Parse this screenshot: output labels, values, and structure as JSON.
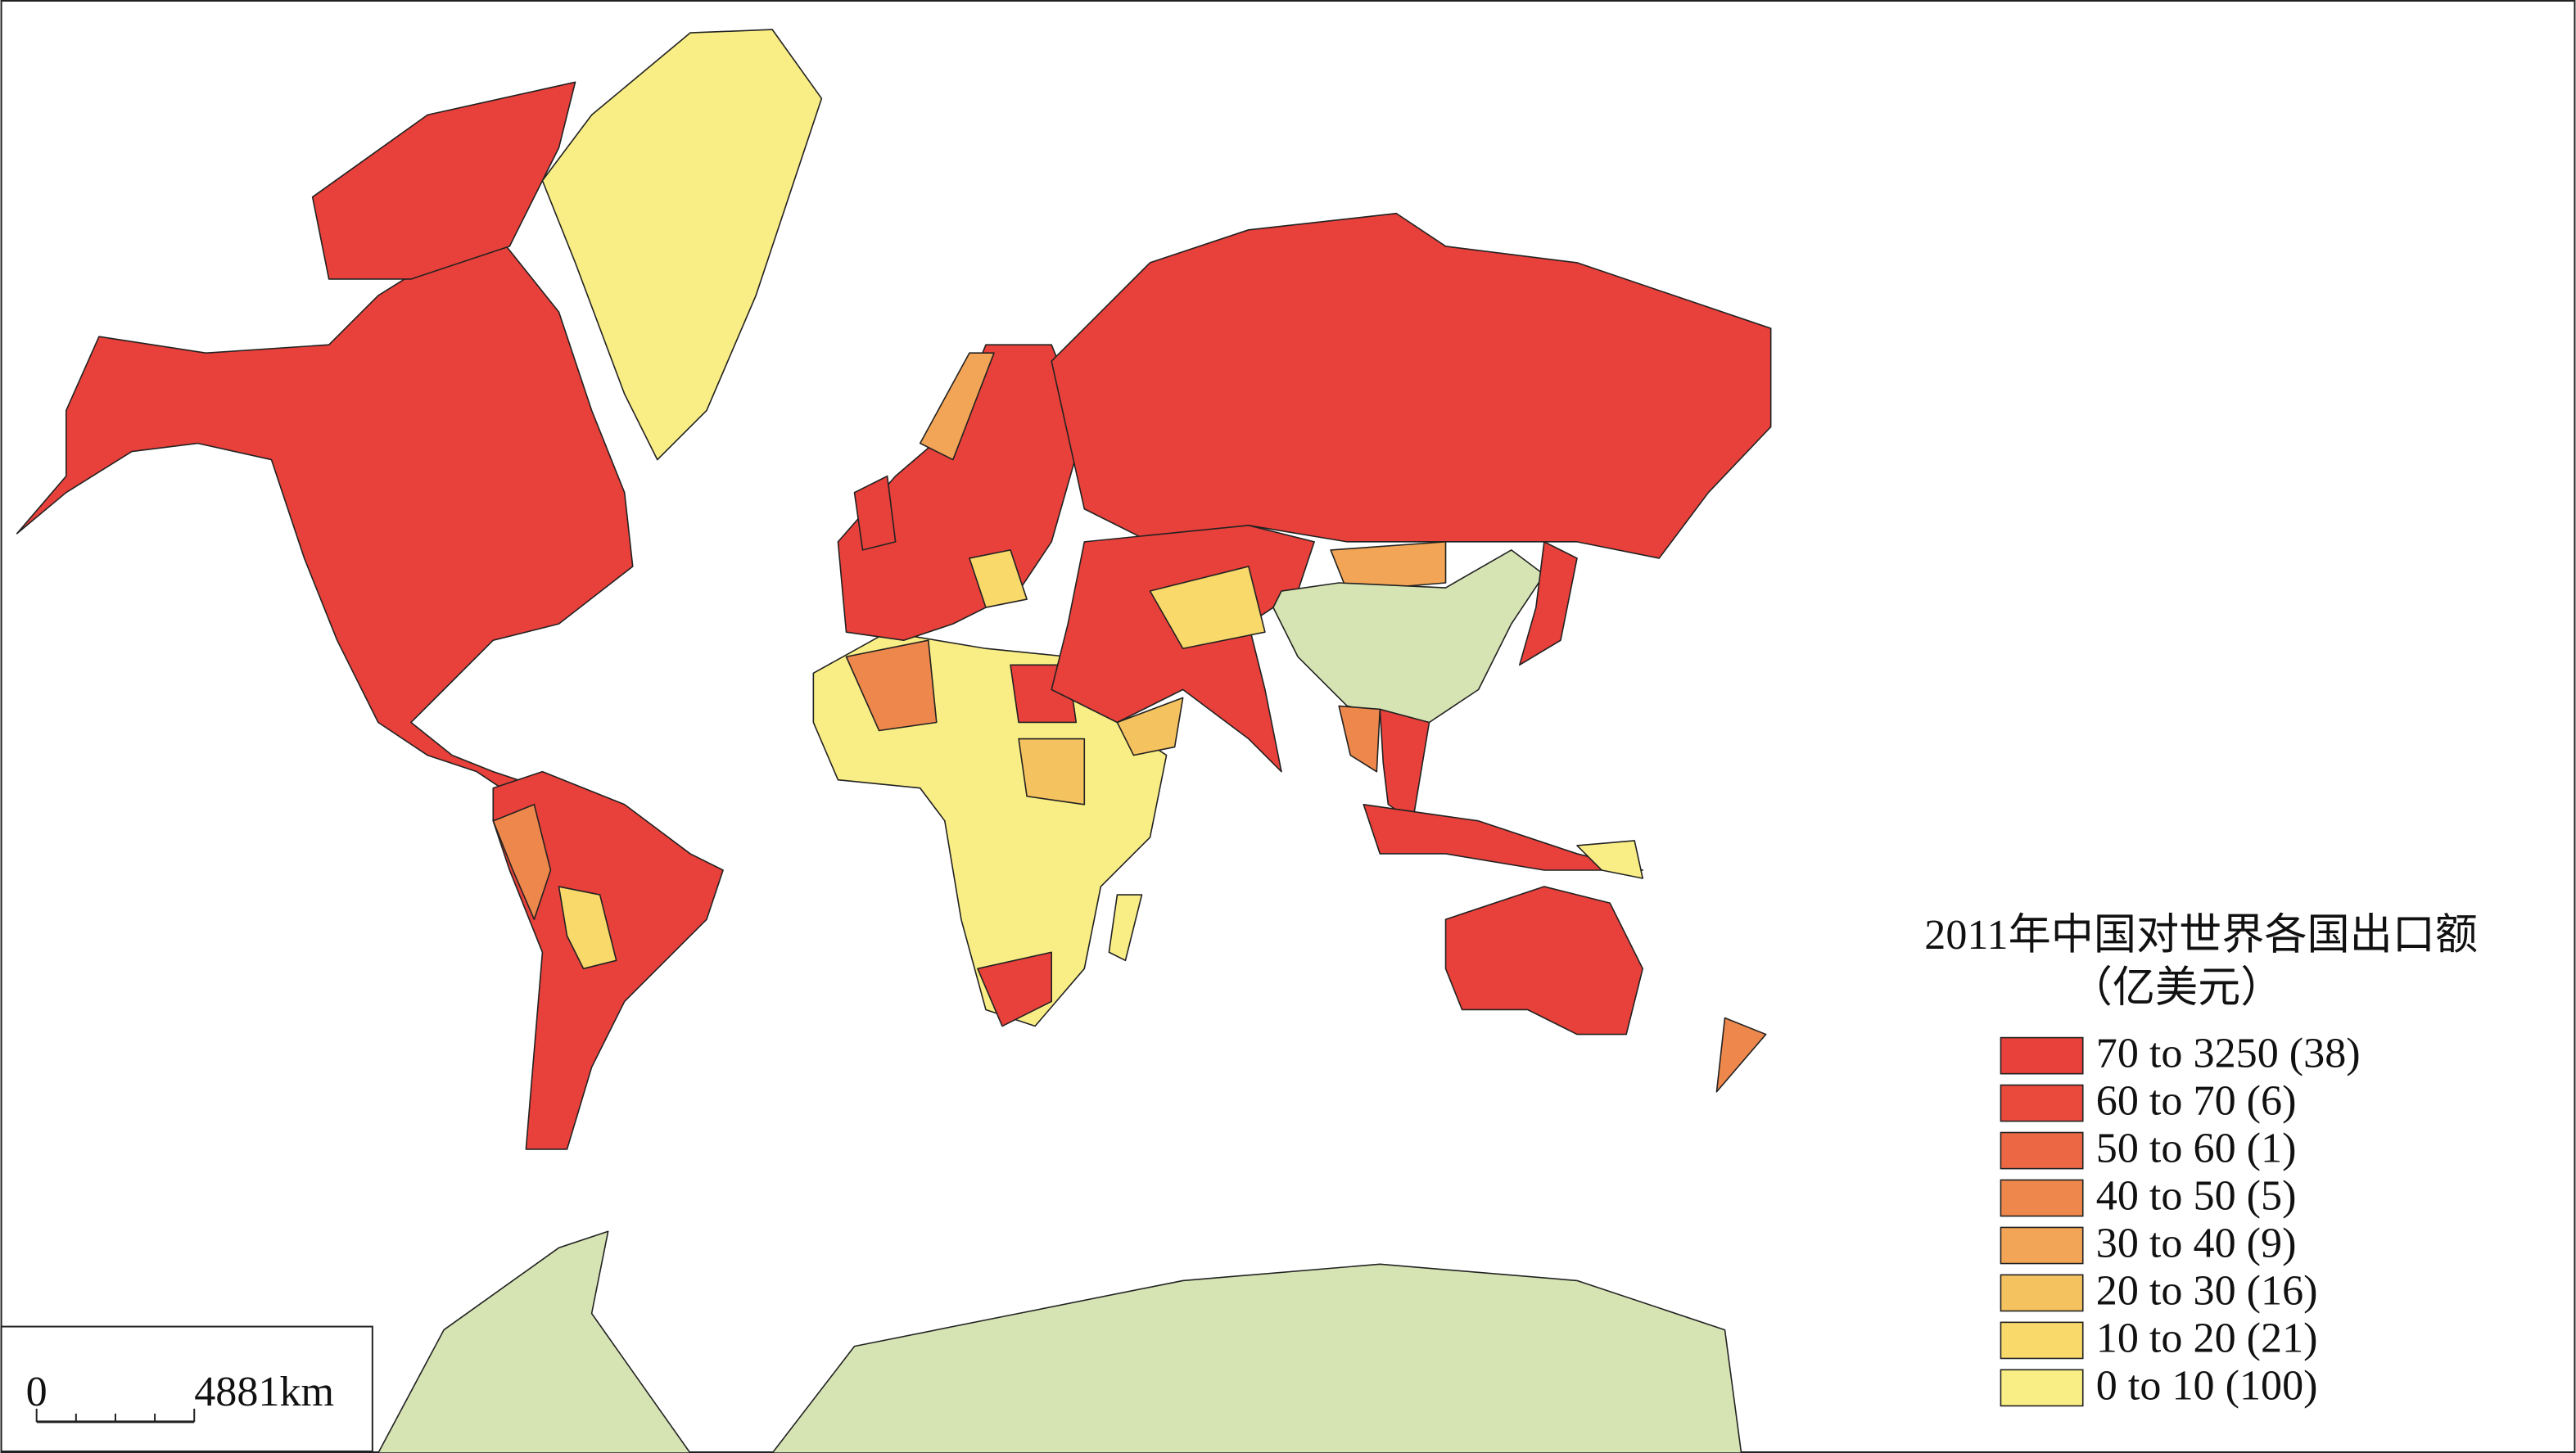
{
  "legend": {
    "title": "2011年中国对世界各国出口额",
    "subtitle": "（亿美元）",
    "items": [
      {
        "label": "70 to 3250 (38)",
        "color": "#e8403a"
      },
      {
        "label": "60 to 70 (6)",
        "color": "#ea4a3c"
      },
      {
        "label": "50 to 60 (1)",
        "color": "#ec6844"
      },
      {
        "label": "40 to 50 (5)",
        "color": "#ee874b"
      },
      {
        "label": "30 to 40 (9)",
        "color": "#f2a556"
      },
      {
        "label": "20 to 30 (16)",
        "color": "#f5c260"
      },
      {
        "label": "10 to 20 (21)",
        "color": "#f8d96a"
      },
      {
        "label": "0 to 10 (100)",
        "color": "#f9ee85"
      }
    ]
  },
  "scale_bar": {
    "start": "0",
    "end": "4881km"
  }
}
